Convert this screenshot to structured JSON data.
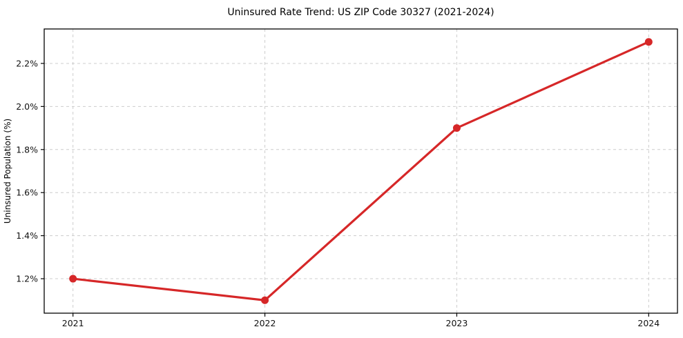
{
  "figure": {
    "background": "#ffffff"
  },
  "chart_data": {
    "type": "line",
    "title": "Uninsured Rate Trend: US ZIP Code 30327 (2021-2024)",
    "xlabel": "",
    "ylabel": "Uninsured Population (%)",
    "x": [
      2021,
      2022,
      2023,
      2024
    ],
    "values": [
      1.2,
      1.1,
      1.9,
      2.3
    ],
    "xticks": [
      2021,
      2022,
      2023,
      2024
    ],
    "xtick_labels": [
      "2021",
      "2022",
      "2023",
      "2024"
    ],
    "yticks": [
      1.2,
      1.4,
      1.6,
      1.8,
      2.0,
      2.2
    ],
    "ytick_labels": [
      "1.2%",
      "1.4%",
      "1.6%",
      "1.8%",
      "2.0%",
      "2.2%"
    ],
    "xlim": [
      2020.85,
      2024.15
    ],
    "ylim": [
      1.04,
      2.36
    ],
    "grid": true,
    "grid_style": "dashed",
    "legend_position": "none",
    "line_color": "#d62728",
    "marker": "circle",
    "marker_color": "#d62728",
    "grid_color": "#cccccc",
    "axis_color": "#000000",
    "text_color": "#111111"
  }
}
